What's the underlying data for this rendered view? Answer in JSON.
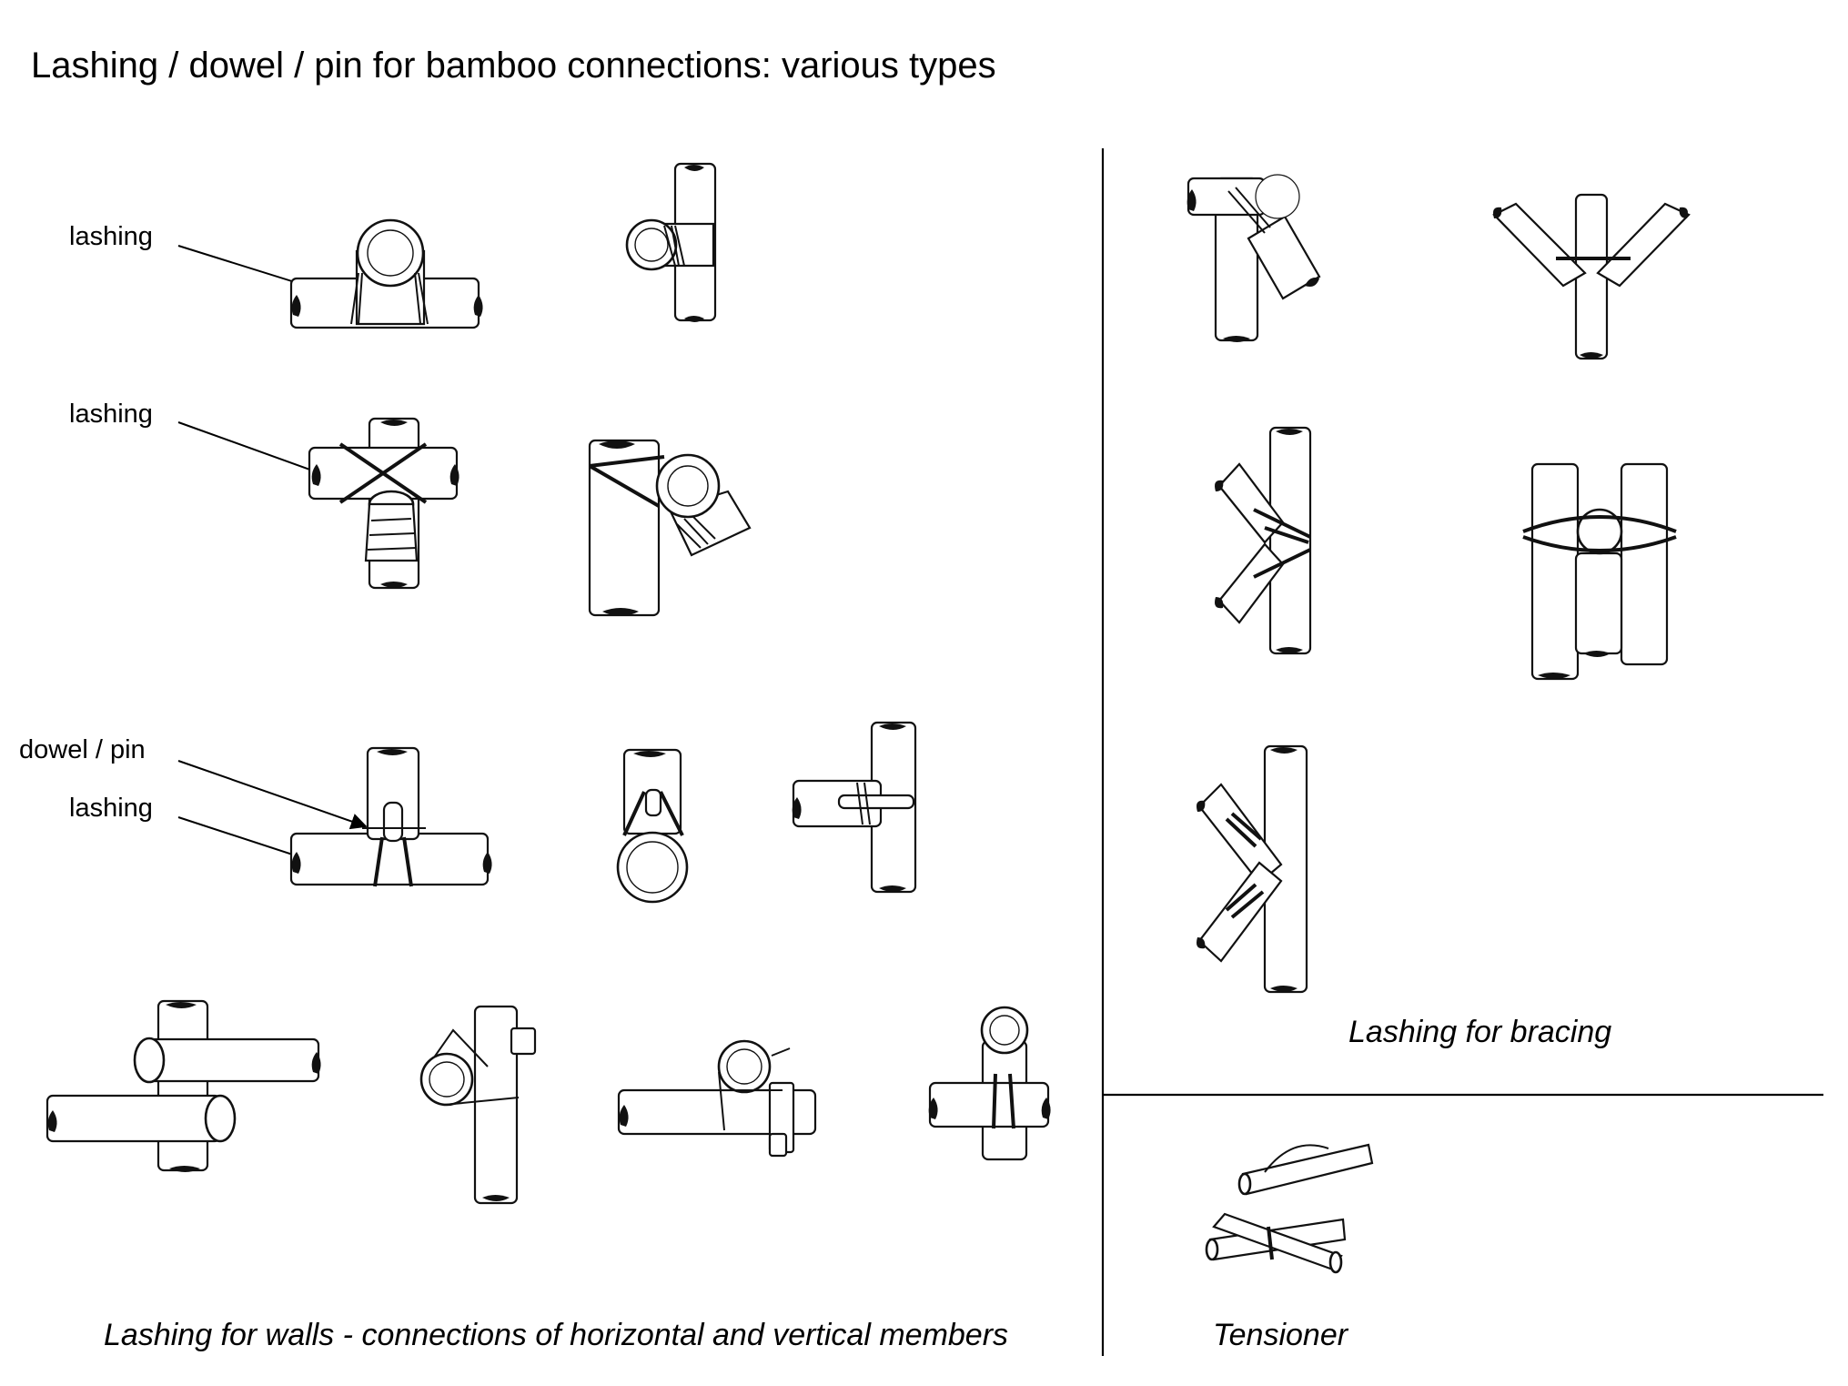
{
  "title": "Lashing / dowel / pin for bamboo connections: various types",
  "labels": {
    "lashing_1": "lashing",
    "lashing_2": "lashing",
    "dowel_pin": "dowel / pin",
    "lashing_3": "lashing"
  },
  "captions": {
    "walls": "Lashing for walls - connections of horizontal and vertical members",
    "bracing": "Lashing for bracing",
    "tensioner": "Tensioner"
  }
}
